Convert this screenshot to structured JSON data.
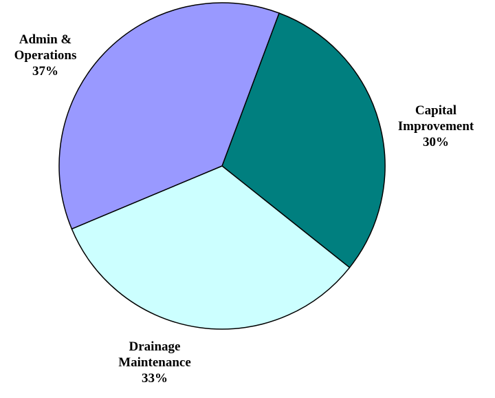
{
  "chart_data": {
    "type": "pie",
    "title": "",
    "start_direction": "clockwise from about 1 o'clock",
    "slices": [
      {
        "key": "capital",
        "lines": [
          "Capital",
          "Improvement"
        ],
        "percent_label": "30%",
        "value": 30,
        "color": "#007f7f"
      },
      {
        "key": "drainage",
        "lines": [
          "Drainage",
          "Maintenance"
        ],
        "percent_label": "33%",
        "value": 33,
        "color": "#ccffff"
      },
      {
        "key": "admin",
        "lines": [
          "Admin &",
          "Operations"
        ],
        "percent_label": "37%",
        "value": 37,
        "color": "#9999ff"
      }
    ],
    "legend": "none",
    "border_color": "#000000"
  }
}
